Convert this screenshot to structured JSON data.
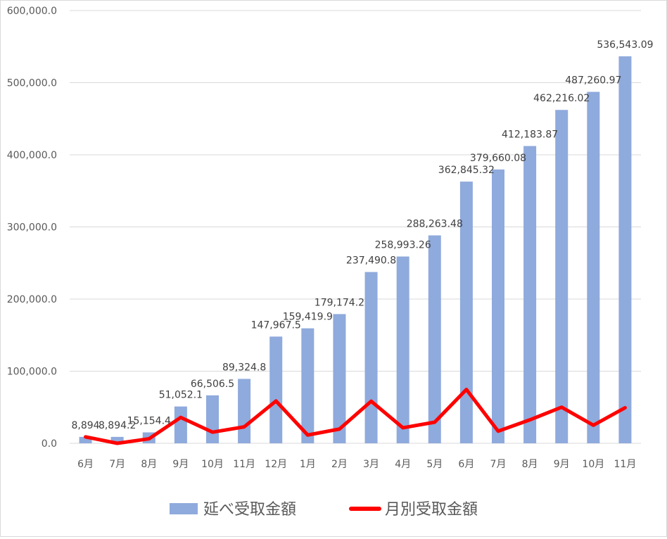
{
  "chart_data": {
    "type": "bar",
    "categories": [
      "6月",
      "7月",
      "8月",
      "9月",
      "10月",
      "11月",
      "12月",
      "1月",
      "2月",
      "3月",
      "4月",
      "5月",
      "6月",
      "7月",
      "8月",
      "9月",
      "10月",
      "11月"
    ],
    "ylim": [
      0,
      600000
    ],
    "y_ticks": [
      "0.0",
      "100,000.0",
      "200,000.0",
      "300,000.0",
      "400,000.0",
      "500,000.0",
      "600,000.0"
    ],
    "grid": true,
    "legend_position": "bottom",
    "series": [
      {
        "name": "延べ受取金額",
        "type": "bar",
        "color": "#8faadc",
        "values": [
          8894,
          8894.2,
          15154.4,
          51052.1,
          66506.5,
          89324.8,
          147967.5,
          159419.9,
          179174.2,
          237490.8,
          258993.26,
          288263.48,
          362845.32,
          379660.08,
          412183.87,
          462216.02,
          487260.97,
          536543.09
        ],
        "data_labels": [
          "8,894",
          "8,894.2",
          "15,154.4",
          "51,052.1",
          "66,506.5",
          "89,324.8",
          "147,967.5",
          "159,419.9",
          "179,174.2",
          "237,490.8",
          "258,993.26",
          "288,263.48",
          "362,845.32",
          "379,660.08",
          "412,183.87",
          "462,216.02",
          "487,260.97",
          "536,543.09"
        ]
      },
      {
        "name": "月別受取金額",
        "type": "line",
        "color": "#ff0000",
        "values": [
          8894,
          0.2,
          6260.2,
          35897.7,
          15454.4,
          22818.3,
          58642.7,
          11452.4,
          19754.3,
          58316.6,
          21502.46,
          29270.22,
          74581.84,
          16814.76,
          32523.79,
          50032.15,
          25044.95,
          49282.12
        ]
      }
    ]
  }
}
